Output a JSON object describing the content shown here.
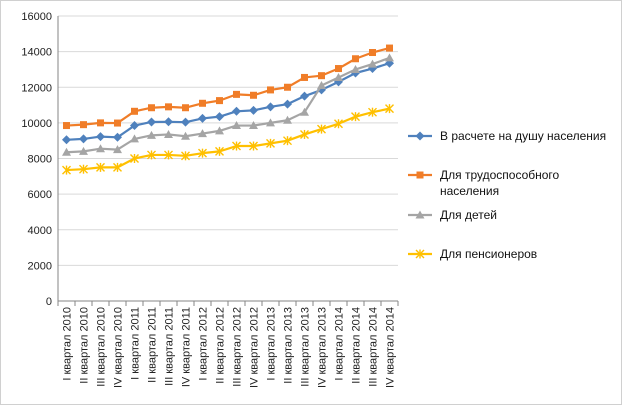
{
  "chart_data": {
    "type": "line",
    "title": "",
    "xlabel": "",
    "ylabel": "",
    "ylim": [
      0,
      16000
    ],
    "yticks": [
      0,
      2000,
      4000,
      6000,
      8000,
      10000,
      12000,
      14000,
      16000
    ],
    "grid": true,
    "legend_position": "right",
    "categories": [
      "I квартал 2010",
      "II квартал 2010",
      "III квартал 2010",
      "IV квартал 2010",
      "I квартал 2011",
      "II квартал 2011",
      "III квартал 2011",
      "IV квартал 2011",
      "I квартал 2012",
      "II квартал 2012",
      "III квартал 2012",
      "IV квартал 2012",
      "I квартал 2013",
      "II квартал 2013",
      "III квартал 2013",
      "IV квартал 2013",
      "I квартал 2014",
      "II квартал 2014",
      "III квартал 2014",
      "IV квартал 2014"
    ],
    "series": [
      {
        "name": "В расчете на душу населения",
        "color": "#4f81bd",
        "marker": "diamond",
        "values": [
          9050,
          9100,
          9230,
          9190,
          9850,
          10050,
          10060,
          10040,
          10250,
          10350,
          10650,
          10700,
          10900,
          11050,
          11500,
          11850,
          12300,
          12800,
          13050,
          13350
        ]
      },
      {
        "name": "Для трудоспособного населения",
        "color": "#f07d28",
        "marker": "square",
        "values": [
          9850,
          9900,
          10000,
          9990,
          10650,
          10850,
          10900,
          10850,
          11100,
          11250,
          11600,
          11550,
          11850,
          12000,
          12550,
          12650,
          13050,
          13600,
          13950,
          14200
        ]
      },
      {
        "name": "Для детей",
        "color": "#a5a5a5",
        "marker": "triangle",
        "values": [
          8350,
          8400,
          8550,
          8500,
          9100,
          9300,
          9350,
          9250,
          9400,
          9550,
          9850,
          9850,
          10000,
          10150,
          10600,
          12100,
          12550,
          13000,
          13300,
          13650
        ]
      },
      {
        "name": "Для пенсионеров",
        "color": "#ffc000",
        "marker": "star",
        "values": [
          7350,
          7400,
          7500,
          7500,
          8000,
          8200,
          8200,
          8150,
          8300,
          8400,
          8700,
          8700,
          8850,
          9000,
          9350,
          9650,
          9950,
          10350,
          10600,
          10800
        ]
      }
    ]
  }
}
